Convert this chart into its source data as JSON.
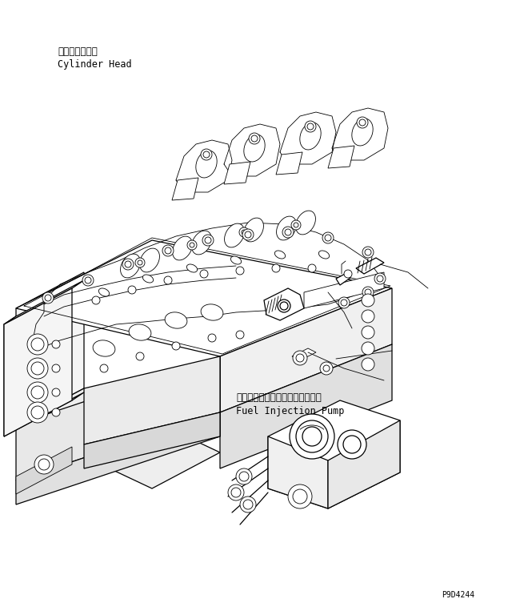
{
  "bg_color": "#ffffff",
  "line_color": "#000000",
  "label_cylinder_head_jp": "シリンダヘッド",
  "label_cylinder_head_en": "Cylinder Head",
  "label_fuel_pump_jp": "フェエルインジェクションポンプ",
  "label_fuel_pump_en": "Fuel Injection Pump",
  "part_number": "P9D4244",
  "font_size_label": 8.5,
  "font_size_partno": 7.0,
  "lw_main": 0.9,
  "lw_thin": 0.6
}
